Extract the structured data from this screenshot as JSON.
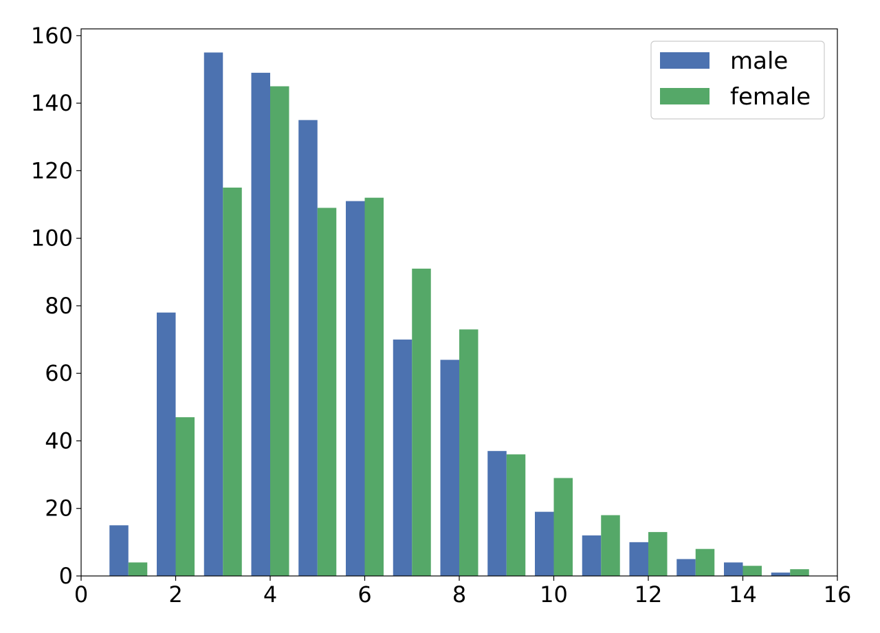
{
  "chart_data": {
    "type": "bar",
    "x": [
      1,
      2,
      3,
      4,
      5,
      6,
      7,
      8,
      9,
      10,
      11,
      12,
      13,
      14,
      15
    ],
    "series": [
      {
        "name": "male",
        "color": "#4c72b0",
        "values": [
          15,
          78,
          155,
          149,
          135,
          111,
          70,
          64,
          37,
          19,
          12,
          10,
          5,
          4,
          1
        ]
      },
      {
        "name": "female",
        "color": "#55a868",
        "values": [
          4,
          47,
          115,
          145,
          109,
          112,
          91,
          73,
          36,
          29,
          18,
          13,
          8,
          3,
          2
        ]
      }
    ],
    "xlim": [
      0,
      16
    ],
    "ylim": [
      0,
      162
    ],
    "xticks": [
      0,
      2,
      4,
      6,
      8,
      10,
      12,
      14,
      16
    ],
    "yticks": [
      0,
      20,
      40,
      60,
      80,
      100,
      120,
      140,
      160
    ],
    "xtick_labels": [
      "0",
      "2",
      "4",
      "6",
      "8",
      "10",
      "12",
      "14",
      "16"
    ],
    "ytick_labels": [
      "0",
      "20",
      "40",
      "60",
      "80",
      "100",
      "120",
      "140",
      "160"
    ],
    "grid": false,
    "legend_position": "top-right"
  }
}
